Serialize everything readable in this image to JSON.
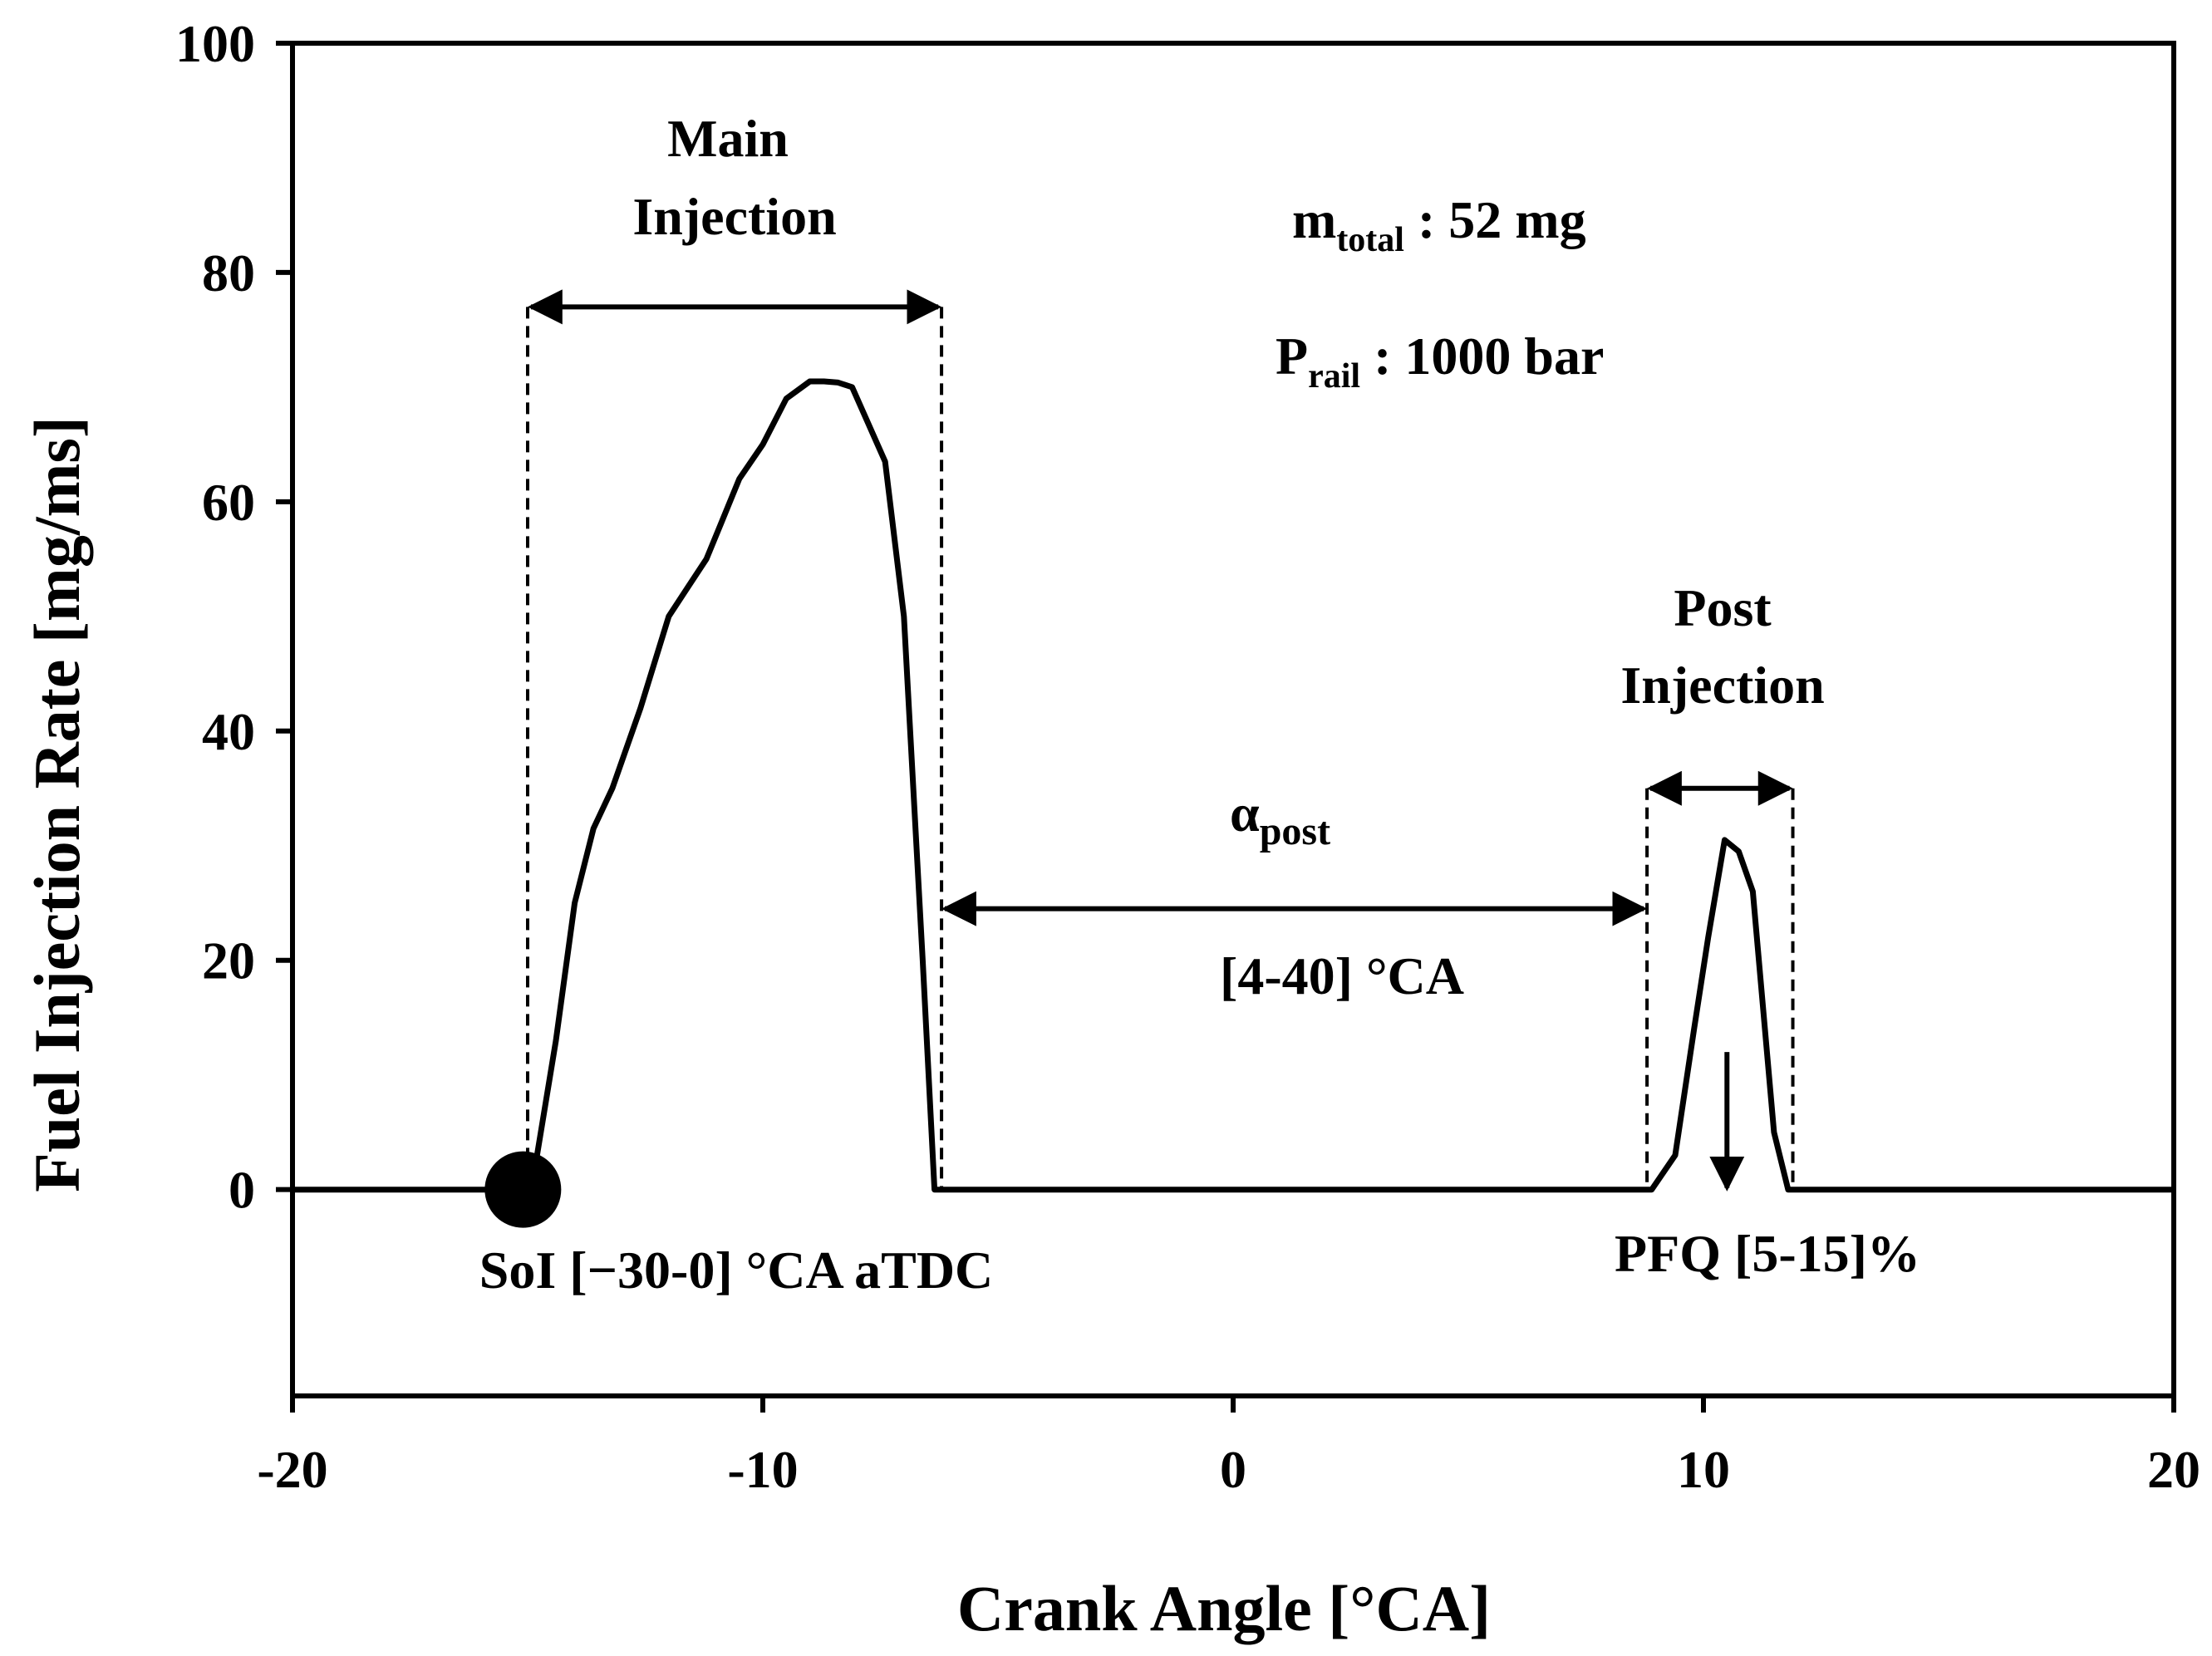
{
  "chart_data": {
    "type": "line",
    "xlabel": "Crank Angle [°CA]",
    "ylabel": "Fuel Injection Rate [mg/ms]",
    "xlim": [
      -20,
      20
    ],
    "ylim": [
      -18,
      100
    ],
    "xticks": [
      -20,
      -10,
      0,
      10,
      20
    ],
    "yticks": [
      0,
      20,
      40,
      60,
      80,
      100
    ],
    "grid": false,
    "series": [
      {
        "x": [
          -20,
          -15.1,
          -14.8,
          -14.4,
          -14.0,
          -13.6,
          -13.2,
          -12.6,
          -12.0,
          -11.6,
          -11.2,
          -10.9,
          -10.5,
          -10.0,
          -9.5,
          -9.0,
          -8.7,
          -8.4,
          -8.1,
          -7.4,
          -7.0,
          -6.6,
          -6.35,
          -6.2,
          8.9,
          9.4,
          9.8,
          10.1,
          10.45,
          10.75,
          11.05,
          11.5,
          11.8,
          20
        ],
        "y": [
          0,
          0,
          3,
          13,
          25,
          31.5,
          35,
          42,
          50,
          52.5,
          55,
          58,
          62,
          65,
          69,
          70.5,
          70.5,
          70.4,
          70,
          63.5,
          50,
          20,
          0,
          0,
          0,
          3,
          14,
          22,
          30.5,
          29.5,
          26,
          5,
          0,
          0
        ]
      }
    ],
    "annotations": {
      "main_injection": [
        "Main",
        "Injection"
      ],
      "post_injection": [
        "Post",
        "Injection"
      ],
      "m_total": {
        "base": "m",
        "sub": "total",
        "rest": " : 52 mg"
      },
      "p_rail": {
        "base": "P",
        "sub": "rail",
        "rest": " : 1000 bar"
      },
      "alpha_post": {
        "base": "α",
        "sub": "post"
      },
      "dwell_range": "[4-40] °CA",
      "soi_label": "SoI [−30-0] °CA aTDC",
      "pfq_label": "PFQ [5-15]%"
    },
    "markers": {
      "soi_x": -15.1,
      "main_start_x": -15.0,
      "main_end_x": -6.2,
      "post_start_x": 8.8,
      "post_end_x": 11.9,
      "main_arrow_y": 77,
      "post_arrow_y": 35,
      "dwell_arrow_y": 24.5,
      "pfq_arrow_top_y": 12,
      "pfq_arrow_bottom_y": 0
    }
  }
}
